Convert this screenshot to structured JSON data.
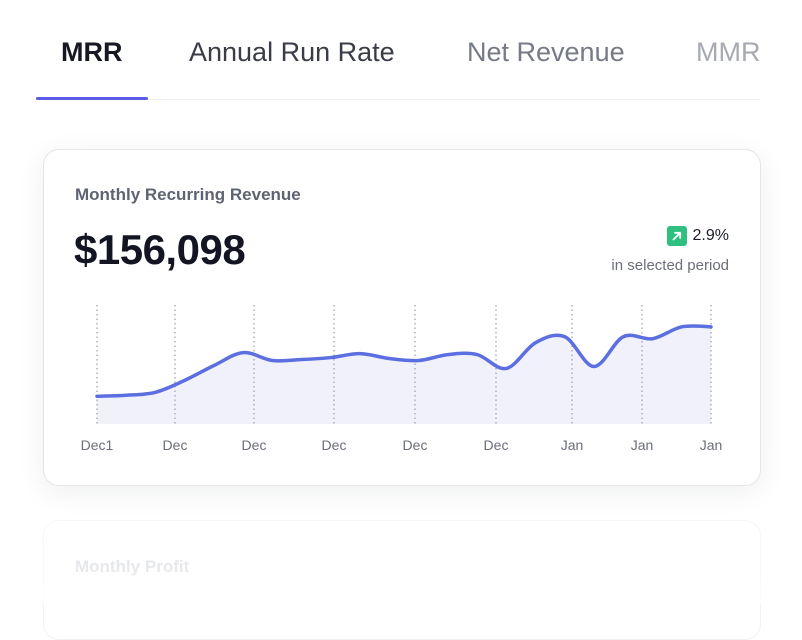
{
  "tabs": [
    {
      "label": "MRR",
      "active": true
    },
    {
      "label": "Annual Run Rate",
      "active": false
    },
    {
      "label": "Net Revenue",
      "active": false
    },
    {
      "label": "MMR",
      "active": false
    }
  ],
  "accent_color": "#5b5ce6",
  "card": {
    "title": "Monthly Recurring Revenue",
    "value": "$156,098",
    "change": "2.9%",
    "change_icon": "arrow-up-right-icon",
    "change_color": "#2fbf7f",
    "period": "in selected period"
  },
  "chart_data": {
    "type": "area",
    "x_ticks": [
      "Dec1",
      "Dec",
      "Dec",
      "Dec",
      "Dec",
      "Dec",
      "Jan",
      "Jan",
      "Jan"
    ],
    "line_color": "#5b6fe0",
    "y": [
      28,
      29,
      32,
      44,
      59,
      72,
      64,
      65,
      67,
      71,
      66,
      64,
      70,
      70,
      56,
      82,
      88,
      58,
      88,
      86,
      98,
      98
    ],
    "ylim": [
      0,
      120
    ],
    "grid": "vertical dotted"
  },
  "card2": {
    "title": "Monthly Profit"
  }
}
